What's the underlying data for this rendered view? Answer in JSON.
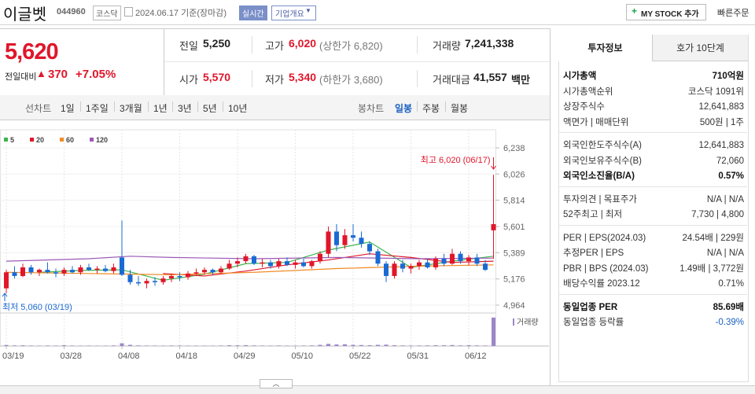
{
  "header": {
    "name": "이글벳",
    "code": "044960",
    "market": "코스닥",
    "date": "2024.06.17 기준(장마감)",
    "realtime": "실시간",
    "company_info": "기업개요",
    "my_stock": "MY STOCK 추가",
    "quick_order": "빠른주문"
  },
  "price": {
    "current": "5,620",
    "change_label": "전일대비",
    "change": "370",
    "change_rate": "+7.05%"
  },
  "summary": [
    [
      {
        "label": "전일",
        "value": "5,250"
      },
      {
        "label": "고가",
        "value": "6,020",
        "note": "(상한가 6,820)"
      },
      {
        "label": "거래량",
        "value": "7,241,338"
      }
    ],
    [
      {
        "label": "시가",
        "value": "5,570"
      },
      {
        "label": "저가",
        "value": "5,340",
        "note": "(하한가 3,680)"
      },
      {
        "label": "거래대금",
        "value": "41,557",
        "unit": "백만"
      }
    ]
  ],
  "chart_tabs": {
    "line": "선차트",
    "line_periods": [
      "1일",
      "1주일",
      "3개월",
      "1년",
      "3년",
      "5년",
      "10년"
    ],
    "candle": "봉차트",
    "candle_periods": [
      "일봉",
      "주봉",
      "월봉"
    ]
  },
  "chart_data": {
    "type": "candlestick",
    "open": [
      5100,
      5230,
      5200,
      5270,
      5230,
      5250,
      5230,
      5220,
      5250,
      5230,
      5270,
      5250,
      5260,
      5240,
      5350,
      5210,
      5150,
      5140,
      5160,
      5150,
      5180,
      5200,
      5190,
      5220,
      5230,
      5250,
      5230,
      5260,
      5300,
      5320,
      5360,
      5300,
      5310,
      5280,
      5320,
      5290,
      5310,
      5280,
      5320,
      5380,
      5560,
      5450,
      5530,
      5510,
      5460,
      5400,
      5300,
      5200,
      5300,
      5260,
      5280,
      5310,
      5270,
      5340,
      5300,
      5380,
      5320,
      5350,
      5300,
      5570
    ],
    "high": [
      5250,
      5280,
      5300,
      5290,
      5260,
      5310,
      5260,
      5270,
      5280,
      5290,
      5300,
      5280,
      5290,
      5300,
      5650,
      5250,
      5200,
      5180,
      5190,
      5200,
      5220,
      5230,
      5240,
      5260,
      5270,
      5260,
      5280,
      5330,
      5350,
      5380,
      5370,
      5340,
      5330,
      5340,
      5350,
      5330,
      5340,
      5330,
      5400,
      5600,
      5620,
      5580,
      5620,
      5560,
      5480,
      5420,
      5320,
      5320,
      5330,
      5300,
      5330,
      5340,
      5360,
      5380,
      5420,
      5400,
      5370,
      5380,
      5330,
      6020
    ],
    "low": [
      5060,
      5180,
      5190,
      5210,
      5200,
      5220,
      5190,
      5200,
      5220,
      5210,
      5240,
      5220,
      5230,
      5220,
      5200,
      5130,
      5120,
      5100,
      5120,
      5130,
      5150,
      5160,
      5170,
      5200,
      5210,
      5210,
      5220,
      5250,
      5270,
      5300,
      5290,
      5270,
      5260,
      5260,
      5280,
      5260,
      5270,
      5260,
      5300,
      5350,
      5400,
      5420,
      5480,
      5430,
      5370,
      5280,
      5150,
      5180,
      5230,
      5220,
      5250,
      5260,
      5250,
      5280,
      5290,
      5300,
      5290,
      5280,
      5240,
      5340
    ],
    "close": [
      5230,
      5200,
      5270,
      5230,
      5250,
      5230,
      5220,
      5250,
      5230,
      5270,
      5250,
      5260,
      5240,
      5270,
      5210,
      5150,
      5140,
      5160,
      5150,
      5180,
      5200,
      5190,
      5220,
      5230,
      5250,
      5230,
      5260,
      5300,
      5320,
      5360,
      5300,
      5310,
      5280,
      5320,
      5290,
      5310,
      5280,
      5320,
      5380,
      5560,
      5450,
      5530,
      5510,
      5460,
      5400,
      5300,
      5200,
      5300,
      5260,
      5280,
      5310,
      5270,
      5340,
      5300,
      5380,
      5320,
      5350,
      5300,
      5250,
      5620
    ],
    "volume": [
      250000,
      150000,
      180000,
      120000,
      100000,
      130000,
      110000,
      200000,
      120000,
      100000,
      110000,
      90000,
      100000,
      150000,
      700000,
      300000,
      150000,
      120000,
      110000,
      100000,
      130000,
      120000,
      100000,
      110000,
      100000,
      90000,
      120000,
      200000,
      180000,
      220000,
      150000,
      120000,
      100000,
      130000,
      110000,
      100000,
      120000,
      150000,
      300000,
      550000,
      400000,
      450000,
      300000,
      250000,
      200000,
      300000,
      350000,
      200000,
      150000,
      120000,
      130000,
      150000,
      200000,
      180000,
      250000,
      150000,
      200000,
      150000,
      130000,
      7241338
    ],
    "up_color": "#e0162b",
    "down_color": "#1a6ad3",
    "volume_color": "#9b87c9",
    "ylim": [
      4964,
      6238
    ],
    "yticks": [
      {
        "value": 6238,
        "label": "6,238"
      },
      {
        "value": 6026,
        "label": "6,026"
      },
      {
        "value": 5814,
        "label": "5,814"
      },
      {
        "value": 5601,
        "label": "5,601"
      },
      {
        "value": 5389,
        "label": "5,389"
      },
      {
        "value": 5176,
        "label": "5,176"
      },
      {
        "value": 4964,
        "label": "4,964"
      }
    ],
    "xticks": [
      {
        "value": 0,
        "label": "03/19"
      },
      {
        "value": 7,
        "label": "03/28"
      },
      {
        "value": 14,
        "label": "04/08"
      },
      {
        "value": 21,
        "label": "04/18"
      },
      {
        "value": 28,
        "label": "04/29"
      },
      {
        "value": 35,
        "label": "05/10"
      },
      {
        "value": 42,
        "label": "05/22"
      },
      {
        "value": 49,
        "label": "05/31"
      },
      {
        "value": 56,
        "label": "06/12"
      }
    ],
    "volume_ylim": [
      0,
      7500000
    ],
    "volume_label": "거래량",
    "moving_averages": [
      {
        "name": "5",
        "color": "#3cb44b",
        "x": [
          4,
          9,
          14,
          19,
          24,
          29,
          34,
          39,
          44,
          49,
          54,
          59
        ],
        "values": [
          5230,
          5245,
          5250,
          5165,
          5215,
          5300,
          5310,
          5410,
          5475,
          5270,
          5320,
          5360
        ]
      },
      {
        "name": "20",
        "color": "#e0162b",
        "x": [
          19,
          24,
          29,
          34,
          39,
          44,
          49,
          54,
          59
        ],
        "values": [
          5220,
          5200,
          5240,
          5290,
          5330,
          5380,
          5350,
          5310,
          5320
        ]
      },
      {
        "name": "60",
        "color": "#f08c28",
        "x": [
          0,
          10,
          20,
          30,
          40,
          50,
          59
        ],
        "values": [
          5230,
          5220,
          5210,
          5230,
          5260,
          5280,
          5290
        ]
      },
      {
        "name": "120",
        "color": "#9b59b6",
        "x": [
          0,
          10,
          15,
          20,
          30,
          40,
          50,
          59
        ],
        "values": [
          5320,
          5340,
          5360,
          5350,
          5340,
          5350,
          5340,
          5345
        ]
      }
    ],
    "high_annotation": "최고 6,020 (06/17)",
    "low_annotation": "최저 5,060 (03/19)"
  },
  "invest_info": {
    "tabs": [
      "투자정보",
      "호가 10단계"
    ],
    "sections": [
      [
        {
          "label": "시가총액",
          "value": "710억원"
        },
        {
          "label": "시가총액순위",
          "value": "코스닥 1091위"
        },
        {
          "label": "상장주식수",
          "value": "12,641,883"
        },
        {
          "label": "액면가 | 매매단위",
          "value": "500원 | 1주"
        }
      ],
      [
        {
          "label": "외국인한도주식수(A)",
          "value": "12,641,883"
        },
        {
          "label": "외국인보유주식수(B)",
          "value": "72,060"
        },
        {
          "label": "외국인소진율(B/A)",
          "value": "0.57%"
        }
      ],
      [
        {
          "label": "투자의견 | 목표주가",
          "value": "N/A | N/A"
        },
        {
          "label": "52주최고 | 최저",
          "value": "7,730 | 4,800"
        }
      ],
      [
        {
          "label": "PER | EPS(2024.03)",
          "value": "24.54배 | 229원"
        },
        {
          "label": "추정PER | EPS",
          "value": "N/A | N/A"
        },
        {
          "label": "PBR | BPS (2024.03)",
          "value": "1.49배 | 3,772원"
        },
        {
          "label": "배당수익률 2023.12",
          "value": "0.71%"
        }
      ],
      [
        {
          "label": "동일업종 PER",
          "value": "85.69배"
        },
        {
          "label": "동일업종 등락률",
          "value": "-0.39%"
        }
      ]
    ]
  }
}
